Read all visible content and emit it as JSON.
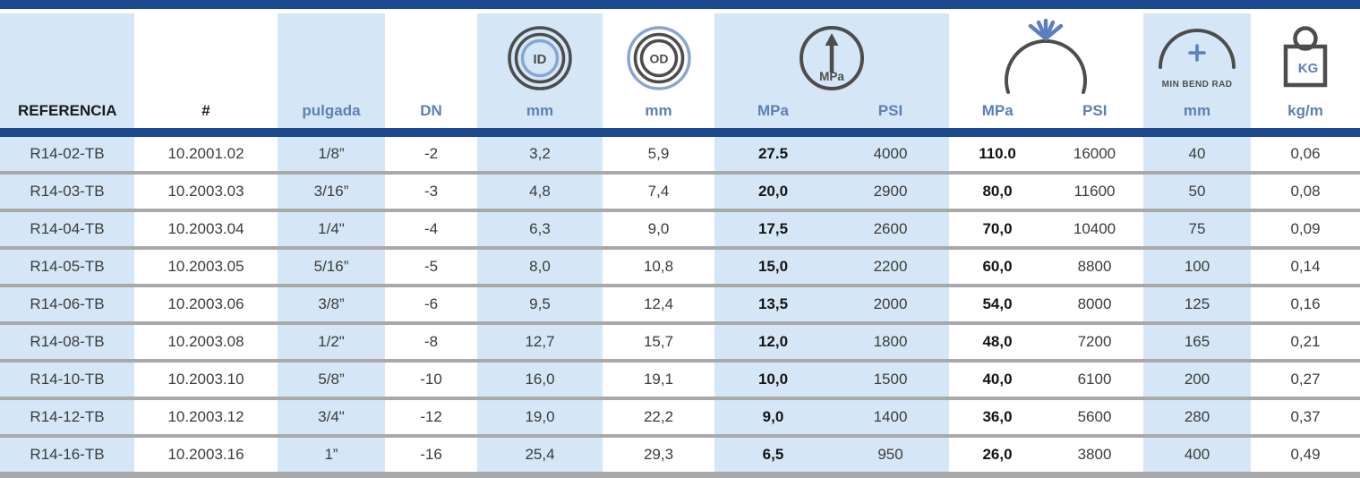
{
  "colors": {
    "navy": "#1d4a8e",
    "light_blue": "#d5e7f6",
    "separator_gray": "#a9a9a9",
    "label_blue": "#5d80b4",
    "icon_dark": "#4d4d4d",
    "icon_blue": "#5b7fc0",
    "text_dark": "#3b3b3b"
  },
  "table": {
    "header": {
      "referencia_label": "REFERENCIA",
      "part_label": "#",
      "pulgada_label": "pulgada",
      "dn_label": "DN",
      "id_unit": "mm",
      "od_unit": "mm",
      "work_mpa_label": "MPa",
      "work_psi_label": "PSI",
      "burst_mpa_label": "MPa",
      "burst_psi_label": "PSI",
      "bend_unit": "mm",
      "weight_unit": "kg/m",
      "id_icon_text": "ID",
      "od_icon_text": "OD",
      "gauge_icon_text": "MPa",
      "min_bend_rad_label": "MIN BEND RAD",
      "kg_icon_text": "KG"
    },
    "columns": [
      {
        "key": "referencia",
        "bg": "lb",
        "bold": false
      },
      {
        "key": "part-number",
        "bg": "wh",
        "bold": false
      },
      {
        "key": "pulgada",
        "bg": "lb",
        "bold": false
      },
      {
        "key": "dn",
        "bg": "wh",
        "bold": false
      },
      {
        "key": "id-mm",
        "bg": "lb",
        "bold": false
      },
      {
        "key": "od-mm",
        "bg": "wh",
        "bold": false
      },
      {
        "key": "work-pressure-mpa",
        "bg": "lb",
        "bold": true
      },
      {
        "key": "work-pressure-psi",
        "bg": "lb",
        "bold": false
      },
      {
        "key": "burst-pressure-mpa",
        "bg": "wh",
        "bold": true
      },
      {
        "key": "burst-pressure-psi",
        "bg": "wh",
        "bold": false
      },
      {
        "key": "min-bend-rad-mm",
        "bg": "lb",
        "bold": false
      },
      {
        "key": "weight-kg-m",
        "bg": "wh",
        "bold": false
      }
    ],
    "rows": [
      [
        "R14-02-TB",
        "10.2001.02",
        "1/8”",
        "-2",
        "3,2",
        "5,9",
        "27.5",
        "4000",
        "110.0",
        "16000",
        "40",
        "0,06"
      ],
      [
        "R14-03-TB",
        "10.2003.03",
        "3/16”",
        "-3",
        "4,8",
        "7,4",
        "20,0",
        "2900",
        "80,0",
        "11600",
        "50",
        "0,08"
      ],
      [
        "R14-04-TB",
        "10.2003.04",
        "1/4\"",
        "-4",
        "6,3",
        "9,0",
        "17,5",
        "2600",
        "70,0",
        "10400",
        "75",
        "0,09"
      ],
      [
        "R14-05-TB",
        "10.2003.05",
        "5/16”",
        "-5",
        "8,0",
        "10,8",
        "15,0",
        "2200",
        "60,0",
        "8800",
        "100",
        "0,14"
      ],
      [
        "R14-06-TB",
        "10.2003.06",
        "3/8”",
        "-6",
        "9,5",
        "12,4",
        "13,5",
        "2000",
        "54,0",
        "8000",
        "125",
        "0,16"
      ],
      [
        "R14-08-TB",
        "10.2003.08",
        "1/2\"",
        "-8",
        "12,7",
        "15,7",
        "12,0",
        "1800",
        "48,0",
        "7200",
        "165",
        "0,21"
      ],
      [
        "R14-10-TB",
        "10.2003.10",
        "5/8”",
        "-10",
        "16,0",
        "19,1",
        "10,0",
        "1500",
        "40,0",
        "6100",
        "200",
        "0,27"
      ],
      [
        "R14-12-TB",
        "10.2003.12",
        "3/4\"",
        "-12",
        "19,0",
        "22,2",
        "9,0",
        "1400",
        "36,0",
        "5600",
        "280",
        "0,37"
      ],
      [
        "R14-16-TB",
        "10.2003.16",
        "1”",
        "-16",
        "25,4",
        "29,3",
        "6,5",
        "950",
        "26,0",
        "3800",
        "400",
        "0,49"
      ]
    ]
  }
}
